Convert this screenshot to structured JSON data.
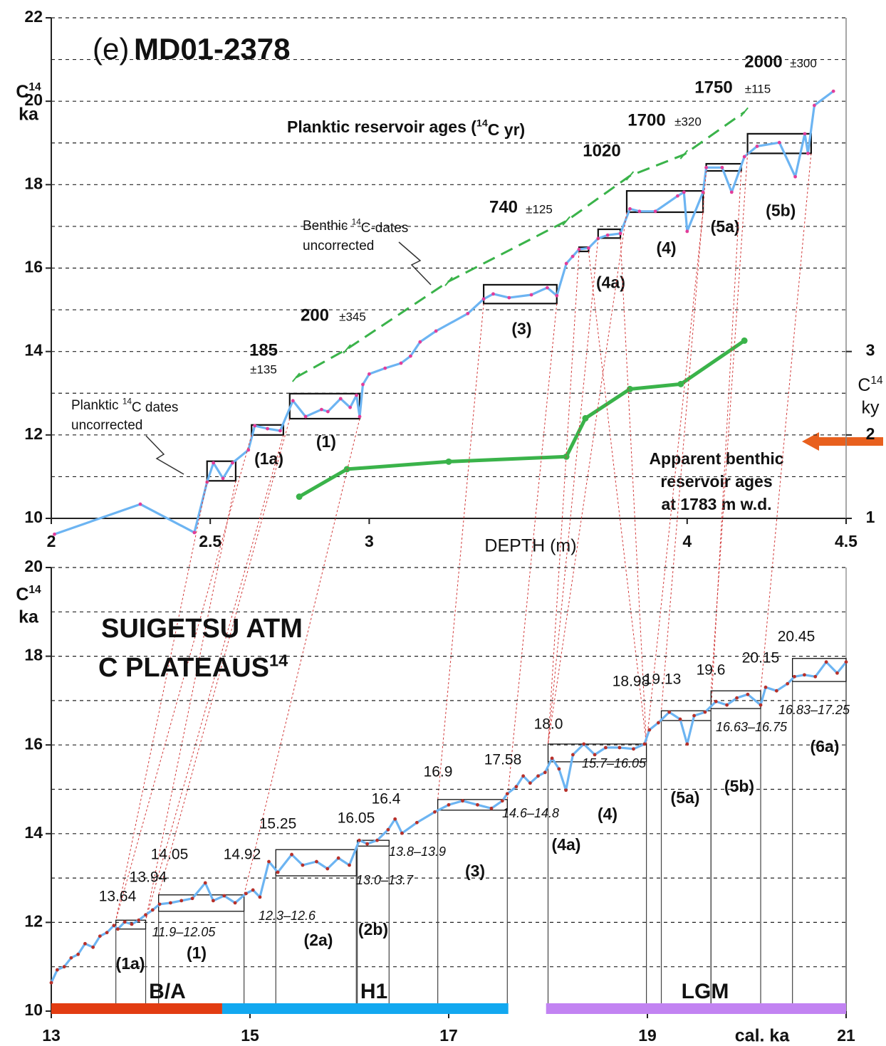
{
  "chart_data": [
    {
      "type": "line",
      "panel": "(e)",
      "title": "MD01-2378",
      "ylabel": {
        "sup": "14",
        "text": "C",
        "line2": "ka"
      },
      "xlabel": "DEPTH  (m)",
      "xlim": [
        2,
        4.5
      ],
      "xticks": [
        2,
        2.5,
        3,
        4,
        4.5
      ],
      "ylim": [
        10,
        22
      ],
      "yticks": [
        10,
        12,
        14,
        16,
        18,
        20,
        22
      ],
      "minor_yticks": [
        11,
        13,
        15,
        17,
        19,
        21
      ],
      "y2lim": [
        1,
        7
      ],
      "y2ticks": [
        1,
        2,
        3
      ],
      "y2label": {
        "sup": "14",
        "text": "C",
        "line2": "ky"
      },
      "grid": true,
      "series": [
        {
          "color": "#6cb4f2",
          "marker_color": "#e23d9a",
          "x": [
            2.01,
            2.28,
            2.45,
            2.49,
            2.51,
            2.54,
            2.57,
            2.62,
            2.64,
            2.68,
            2.72,
            2.76,
            2.8,
            2.85,
            2.87,
            2.91,
            2.94,
            2.96,
            2.97,
            2.98,
            3.0,
            3.05,
            3.1,
            3.13,
            3.16,
            3.21,
            3.31,
            3.36,
            3.39,
            3.44,
            3.51,
            3.56,
            3.59,
            3.62,
            3.64,
            3.66,
            3.69,
            3.72,
            3.75,
            3.79,
            3.82,
            3.85,
            3.9,
            3.97,
            3.99,
            4.0,
            4.05,
            4.06,
            4.11,
            4.14,
            4.18,
            4.22,
            4.29,
            4.34,
            4.37,
            4.38,
            4.4,
            4.46
          ],
          "values": [
            9.62,
            10.34,
            9.66,
            10.87,
            11.33,
            10.96,
            11.33,
            11.64,
            12.22,
            12.15,
            12.1,
            12.82,
            12.44,
            12.61,
            12.56,
            12.87,
            12.66,
            12.95,
            12.44,
            13.21,
            13.46,
            13.6,
            13.72,
            13.89,
            14.23,
            14.49,
            14.91,
            15.26,
            15.38,
            15.29,
            15.36,
            15.53,
            15.34,
            16.11,
            16.28,
            16.45,
            16.48,
            16.71,
            16.79,
            16.83,
            17.42,
            17.36,
            17.36,
            17.73,
            17.82,
            16.88,
            17.82,
            18.41,
            18.41,
            17.82,
            18.67,
            18.92,
            19.01,
            18.19,
            19.22,
            18.75,
            19.9,
            20.24
          ]
        },
        {
          "color": "#3ab34a",
          "dash": true,
          "x": [
            2.77,
            2.93,
            3.25,
            3.62,
            3.82,
            3.99,
            4.18
          ],
          "values": [
            13.38,
            14.06,
            15.68,
            17.13,
            18.21,
            18.72,
            19.74
          ]
        },
        {
          "color": "#3ab34a",
          "marker_color": "#3ab34a",
          "axis": "y2",
          "x": [
            2.78,
            2.93,
            3.25,
            3.62,
            3.68,
            3.82,
            3.98,
            4.18
          ],
          "values": [
            1.26,
            1.59,
            1.68,
            1.74,
            2.2,
            2.55,
            2.61,
            3.13
          ]
        }
      ],
      "boxes": [
        {
          "x": [
            2.49,
            2.58
          ],
          "y": [
            10.9,
            11.37
          ],
          "label": null
        },
        {
          "x": [
            2.63,
            2.73
          ],
          "y": [
            12.0,
            12.24
          ],
          "label": "(1a)"
        },
        {
          "x": [
            2.75,
            2.97
          ],
          "y": [
            12.39,
            12.99
          ],
          "label": "(1)"
        },
        {
          "x": [
            3.36,
            3.59
          ],
          "y": [
            15.15,
            15.6
          ],
          "label": "(3)"
        },
        {
          "x": [
            3.66,
            3.69
          ],
          "y": [
            16.4,
            16.5
          ],
          "label": null
        },
        {
          "x": [
            3.72,
            3.79
          ],
          "y": [
            16.72,
            16.93
          ],
          "label": "(4a)"
        },
        {
          "x": [
            3.81,
            4.05
          ],
          "y": [
            17.34,
            17.85
          ],
          "label": "(4)"
        },
        {
          "x": [
            4.06,
            4.17
          ],
          "y": [
            18.33,
            18.5
          ],
          "label": "(5a)"
        },
        {
          "x": [
            4.19,
            4.39
          ],
          "y": [
            18.75,
            19.22
          ],
          "label": "(5b)"
        }
      ],
      "reservoir_labels": [
        {
          "text": "185",
          "unc": "±135"
        },
        {
          "text": "200",
          "unc": "±345"
        },
        {
          "text": "740",
          "unc": "±125"
        },
        {
          "text": "1020"
        },
        {
          "text": "1700",
          "unc": "±320"
        },
        {
          "text": "1750",
          "unc": "±115"
        },
        {
          "text": "2000",
          "unc": "±300"
        }
      ],
      "notes": {
        "planktic_ages": {
          "text": "Planktic reservoir ages (",
          "sup": "14",
          "post": "C yr)"
        },
        "benthic": {
          "text": "Benthic ",
          "sup": "14",
          "post": "C-dates",
          "line2": "uncorrected"
        },
        "planktic": {
          "text": "Planktic ",
          "sup": "14",
          "post": "C dates",
          "line2": "uncorrected"
        },
        "benthic_ages": [
          "Apparent benthic",
          "reservoir ages",
          "at 1783 m w.d."
        ]
      }
    },
    {
      "type": "line",
      "heading": "SUIGETSU  ATM",
      "subheading": {
        "sup": "14",
        "text": "C PLATEAUS"
      },
      "ylabel": {
        "sup": "14",
        "text": "C",
        "line2": "ka"
      },
      "xlabel": "cal. ka",
      "xlim": [
        13,
        21
      ],
      "xticks": [
        13,
        15,
        17,
        19,
        21
      ],
      "ylim": [
        10,
        20
      ],
      "yticks": [
        10,
        12,
        14,
        16,
        18,
        20
      ],
      "minor_yticks": [
        11,
        13,
        15,
        17,
        19
      ],
      "grid": true,
      "series": [
        {
          "color": "#6cb4f2",
          "marker_color": "#b8302a",
          "x": [
            13.0,
            13.06,
            13.13,
            13.2,
            13.27,
            13.34,
            13.42,
            13.49,
            13.56,
            13.63,
            13.67,
            13.74,
            13.81,
            13.88,
            13.95,
            14.02,
            14.09,
            14.2,
            14.31,
            14.42,
            14.55,
            14.63,
            14.74,
            14.85,
            14.96,
            15.03,
            15.1,
            15.19,
            15.28,
            15.42,
            15.53,
            15.67,
            15.78,
            15.89,
            16.0,
            16.1,
            16.18,
            16.28,
            16.39,
            16.46,
            16.53,
            16.68,
            16.86,
            17.0,
            17.14,
            17.29,
            17.43,
            17.54,
            17.59,
            17.68,
            17.75,
            17.82,
            17.9,
            17.97,
            18.04,
            18.11,
            18.18,
            18.25,
            18.36,
            18.47,
            18.58,
            18.72,
            18.86,
            18.97,
            19.02,
            19.11,
            19.22,
            19.33,
            19.4,
            19.47,
            19.58,
            19.69,
            19.8,
            19.9,
            20.01,
            20.14,
            20.19,
            20.3,
            20.41,
            20.48,
            20.58,
            20.69,
            20.8,
            20.91,
            21.0
          ],
          "values": [
            10.64,
            10.93,
            11.0,
            11.2,
            11.28,
            11.52,
            11.44,
            11.69,
            11.77,
            11.93,
            11.85,
            12.01,
            11.96,
            12.05,
            12.17,
            12.28,
            12.41,
            12.44,
            12.49,
            12.54,
            12.89,
            12.49,
            12.6,
            12.44,
            12.65,
            12.73,
            12.57,
            13.37,
            13.13,
            13.53,
            13.29,
            13.37,
            13.21,
            13.45,
            13.29,
            13.85,
            13.77,
            13.85,
            14.09,
            14.33,
            14.01,
            14.25,
            14.49,
            14.65,
            14.74,
            14.65,
            14.57,
            14.74,
            14.9,
            15.06,
            15.3,
            15.14,
            15.3,
            15.38,
            15.7,
            15.46,
            14.98,
            15.78,
            16.02,
            15.78,
            15.94,
            15.94,
            15.91,
            16.02,
            16.34,
            16.5,
            16.74,
            16.58,
            16.02,
            16.66,
            16.74,
            16.98,
            16.9,
            17.06,
            17.14,
            16.9,
            17.3,
            17.22,
            17.38,
            17.54,
            17.58,
            17.54,
            17.87,
            17.62,
            17.87
          ]
        }
      ],
      "boxes": [
        {
          "x": [
            13.65,
            13.95
          ],
          "y": [
            11.85,
            12.05
          ]
        },
        {
          "x": [
            14.08,
            14.94
          ],
          "y": [
            12.25,
            12.62
          ]
        },
        {
          "x": [
            15.26,
            16.07
          ],
          "y": [
            13.05,
            13.64
          ]
        },
        {
          "x": [
            16.08,
            16.4
          ],
          "y": [
            13.72,
            13.85
          ]
        },
        {
          "x": [
            16.89,
            17.59
          ],
          "y": [
            14.53,
            14.77
          ]
        },
        {
          "x": [
            18.0,
            18.99
          ],
          "y": [
            15.62,
            16.02
          ]
        },
        {
          "x": [
            19.14,
            19.64
          ],
          "y": [
            16.55,
            16.77
          ]
        },
        {
          "x": [
            19.64,
            20.14
          ],
          "y": [
            16.82,
            17.22
          ]
        },
        {
          "x": [
            20.46,
            21.0
          ],
          "y": [
            17.43,
            17.95
          ]
        }
      ],
      "plateau_labels": [
        "(1a)",
        "(1)",
        "(2a)",
        "(2b)",
        "(3)",
        "(4a)",
        "(4)",
        "(5a)",
        "(5b)",
        "(6a)"
      ],
      "age_labels": [
        "13.64",
        "13.94",
        "14.05",
        "14.92",
        "15.25",
        "16.05",
        "16.4",
        "16.9",
        "17.58",
        "18.0",
        "18.98",
        "19.13",
        "19.6",
        "20.15",
        "20.45"
      ],
      "range_labels": [
        "11.9–12.05",
        "12.3–12.6",
        "13.0–13.7",
        "13.8–13.9",
        "14.6–14.8",
        "15.7–16.05",
        "16.63–16.75",
        "16.83–17.25"
      ],
      "periods": [
        {
          "label": "B/A",
          "start": 13,
          "end": 14.72,
          "color": "#e23c12",
          "label_color": "#e8561e"
        },
        {
          "label": "H1",
          "start": 14.72,
          "end": 17.6,
          "color": "#12a8f0",
          "label_color": "#3a9ff0"
        },
        {
          "label": "LGM",
          "start": 17.98,
          "end": 21,
          "color": "#c283f2",
          "label_color": "#2b2fb0"
        }
      ]
    }
  ]
}
